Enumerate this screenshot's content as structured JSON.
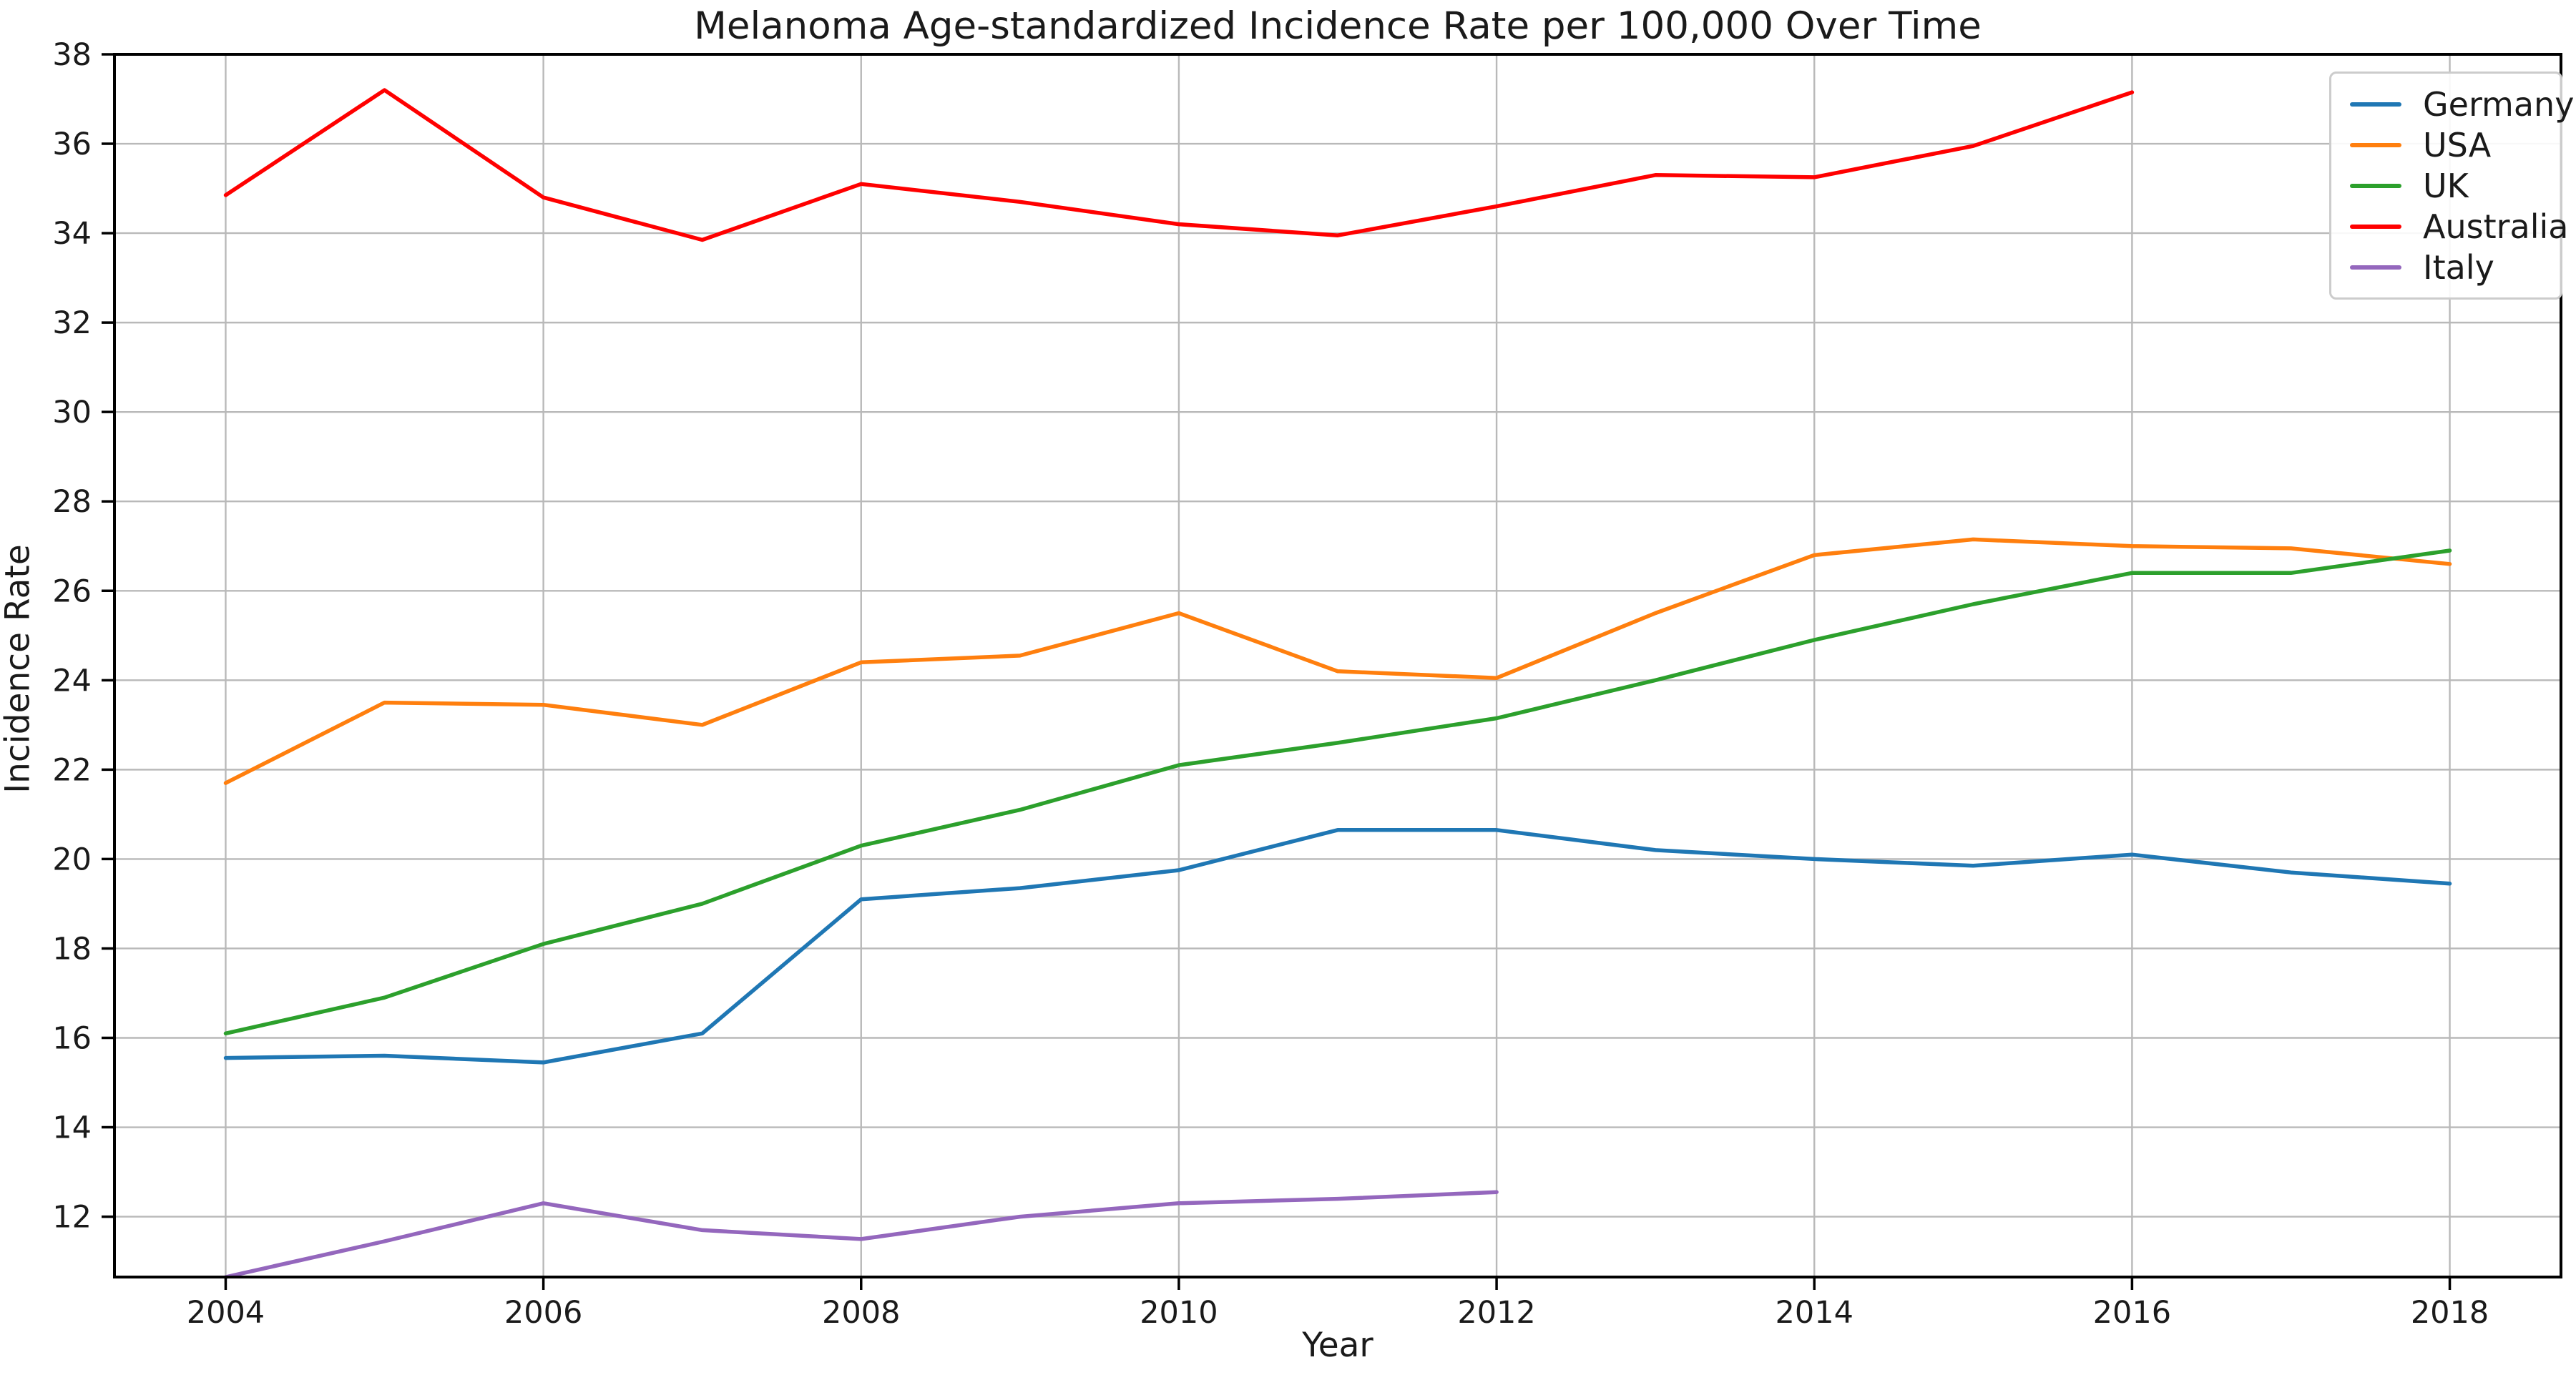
{
  "chart_data": {
    "type": "line",
    "title": "Melanoma Age-standardized Incidence Rate per 100,000 Over Time",
    "xlabel": "Year",
    "ylabel": "Incidence Rate",
    "grid": true,
    "legend_position": "upper right",
    "xlim": [
      2003.3,
      2018.7
    ],
    "ylim": [
      10.65,
      38
    ],
    "xticks": [
      2004,
      2006,
      2008,
      2010,
      2012,
      2014,
      2016,
      2018
    ],
    "yticks": [
      12,
      14,
      16,
      18,
      20,
      22,
      24,
      26,
      28,
      30,
      32,
      34,
      36,
      38
    ],
    "series": [
      {
        "name": "Germany",
        "color": "#1f77b4",
        "x": [
          2004,
          2005,
          2006,
          2007,
          2008,
          2009,
          2010,
          2011,
          2012,
          2013,
          2014,
          2015,
          2016,
          2017,
          2018
        ],
        "values": [
          15.55,
          15.6,
          15.45,
          16.1,
          19.1,
          19.35,
          19.75,
          20.65,
          20.65,
          20.2,
          20.0,
          19.85,
          20.1,
          19.7,
          19.45
        ]
      },
      {
        "name": "USA",
        "color": "#ff7f0e",
        "x": [
          2004,
          2005,
          2006,
          2007,
          2008,
          2009,
          2010,
          2011,
          2012,
          2013,
          2014,
          2015,
          2016,
          2017,
          2018
        ],
        "values": [
          21.7,
          23.5,
          23.45,
          23.0,
          24.4,
          24.55,
          25.5,
          24.2,
          24.05,
          25.5,
          26.8,
          27.15,
          27.0,
          26.95,
          26.6
        ]
      },
      {
        "name": "UK",
        "color": "#2ca02c",
        "x": [
          2004,
          2005,
          2006,
          2007,
          2008,
          2009,
          2010,
          2011,
          2012,
          2013,
          2014,
          2015,
          2016,
          2017,
          2018
        ],
        "values": [
          16.1,
          16.9,
          18.1,
          19.0,
          20.3,
          21.1,
          22.1,
          22.6,
          23.15,
          24.0,
          24.9,
          25.7,
          26.4,
          26.4,
          26.9
        ]
      },
      {
        "name": "Australia",
        "color": "#ff0000",
        "x": [
          2004,
          2005,
          2006,
          2007,
          2008,
          2009,
          2010,
          2011,
          2012,
          2013,
          2014,
          2015,
          2016
        ],
        "values": [
          34.85,
          37.2,
          34.8,
          33.85,
          35.1,
          34.7,
          34.2,
          33.95,
          34.6,
          35.3,
          35.25,
          35.95,
          37.15
        ]
      },
      {
        "name": "Italy",
        "color": "#9467bd",
        "x": [
          2004,
          2005,
          2006,
          2007,
          2008,
          2009,
          2010,
          2011,
          2012
        ],
        "values": [
          10.65,
          11.45,
          12.3,
          11.7,
          11.5,
          12.0,
          12.3,
          12.4,
          12.55
        ]
      }
    ],
    "style": {
      "grid_color": "#b9b9b9",
      "spine_color": "#000000",
      "text_color": "#1a1a1a",
      "background": "#ffffff"
    }
  }
}
